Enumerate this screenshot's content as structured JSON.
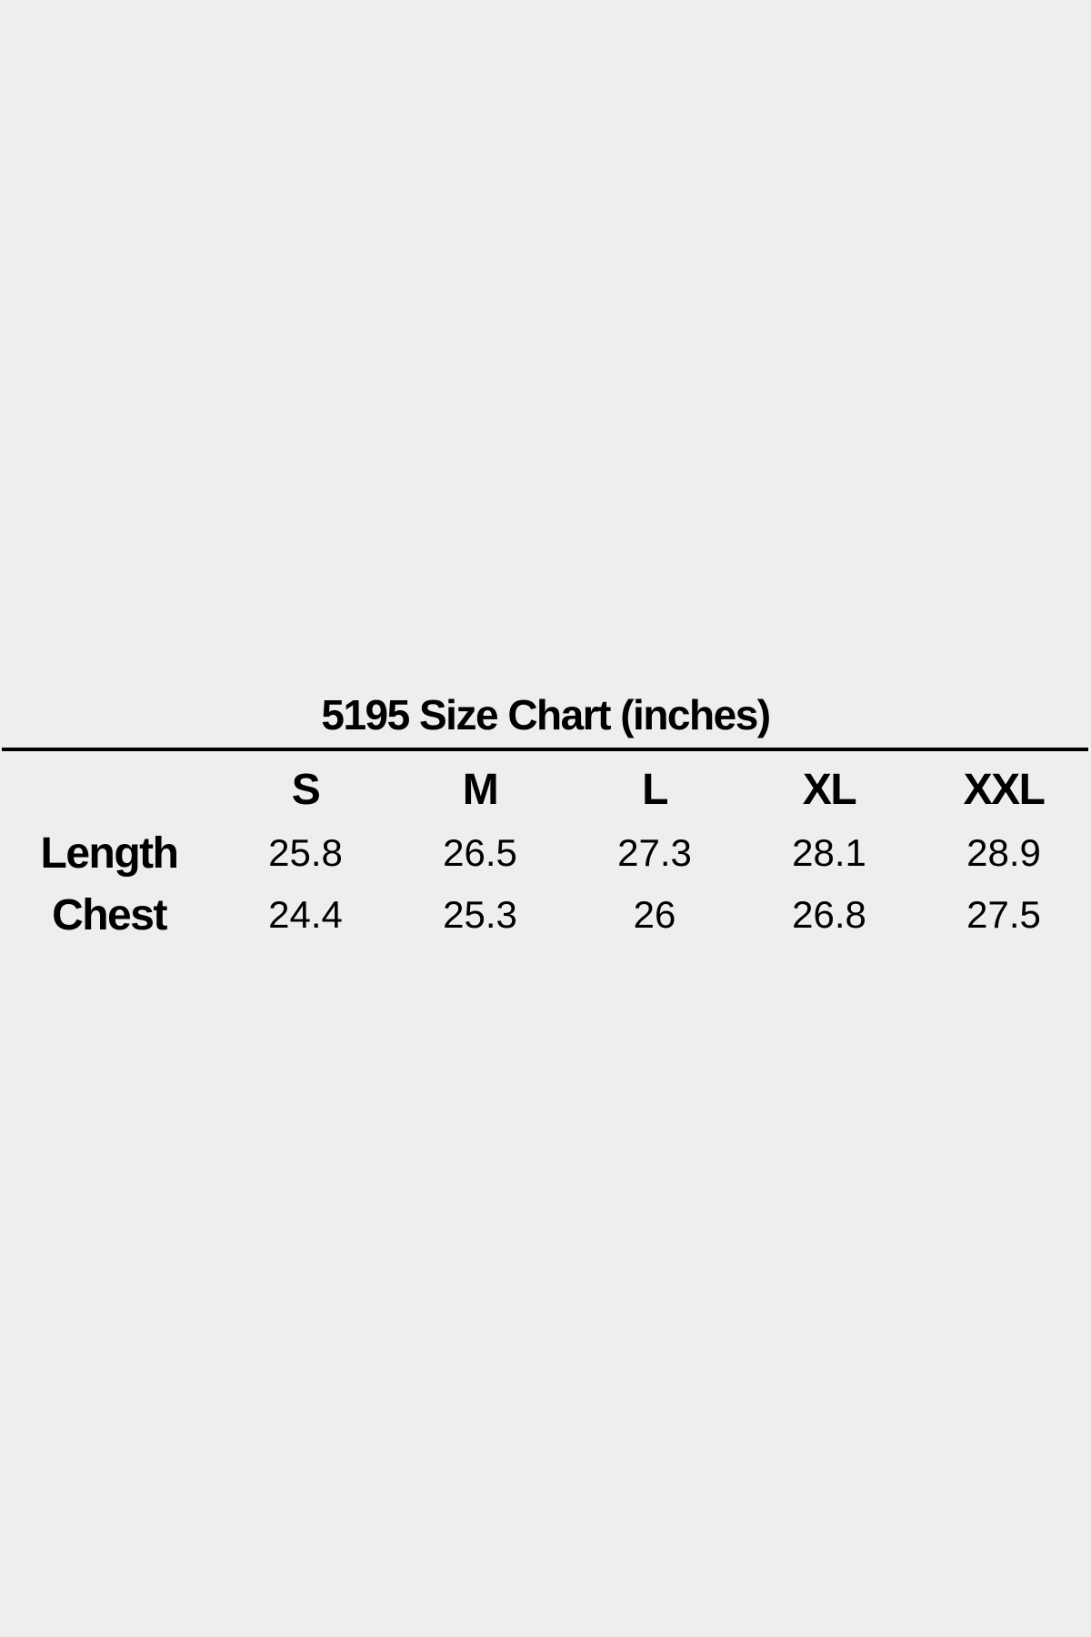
{
  "page": {
    "background_color": "#eeeeee",
    "text_color": "#000000",
    "rule_color": "#000000"
  },
  "title": "5195 Size Chart (inches)",
  "table": {
    "corner_label": "",
    "column_headers": [
      "S",
      "M",
      "L",
      "XL",
      "XXL"
    ],
    "rows": [
      {
        "label": "Length",
        "values": [
          "25.8",
          "26.5",
          "27.3",
          "28.1",
          "28.9"
        ]
      },
      {
        "label": "Chest",
        "values": [
          "24.4",
          "25.3",
          "26",
          "26.8",
          "27.5"
        ]
      }
    ]
  },
  "chart_data": {
    "type": "table",
    "title": "5195 Size Chart (inches)",
    "unit": "inches",
    "columns": [
      "",
      "S",
      "M",
      "L",
      "XL",
      "XXL"
    ],
    "rows": [
      [
        "Length",
        25.8,
        26.5,
        27.3,
        28.1,
        28.9
      ],
      [
        "Chest",
        24.4,
        25.3,
        26,
        26.8,
        27.5
      ]
    ]
  }
}
